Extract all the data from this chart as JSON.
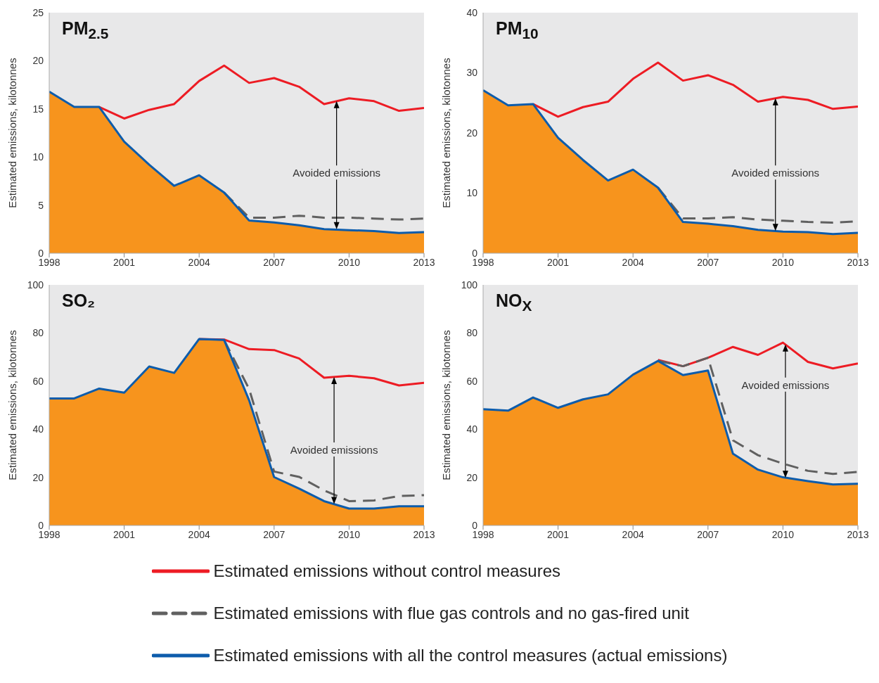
{
  "chart_data": [
    {
      "type": "line",
      "title": "PM$_{2.5}$",
      "ylabel": "Estimated emissions, kilotonnes",
      "x": [
        1998,
        1999,
        2000,
        2001,
        2002,
        2003,
        2004,
        2005,
        2006,
        2007,
        2008,
        2009,
        2010,
        2011,
        2012,
        2013
      ],
      "xlim": [
        1998,
        2013
      ],
      "xticks": [
        1998,
        2001,
        2004,
        2007,
        2010,
        2013
      ],
      "ylim": [
        0,
        25
      ],
      "yticks": [
        0,
        5,
        10,
        15,
        20,
        25
      ],
      "legend": "bottom",
      "annotations": [
        {
          "text": "Avoided emissions",
          "x": 2009.5,
          "y": 2.5
        }
      ],
      "series": [
        {
          "type": "area",
          "color": "#f7941d",
          "values": [
            16.8,
            15.2,
            15.2,
            11.6,
            9.2,
            7.0,
            8.1,
            6.3,
            3.4,
            3.2,
            2.9,
            2.5,
            2.4,
            2.3,
            2.1,
            2.2
          ]
        },
        {
          "name": "Estimated emissions without control measures",
          "color": "#ed1c24",
          "values": [
            null,
            null,
            15.2,
            14.0,
            14.9,
            15.5,
            17.9,
            19.5,
            17.7,
            18.2,
            17.3,
            15.5,
            16.1,
            15.8,
            14.8,
            15.1
          ]
        },
        {
          "name": "Estimated emissions with flue gas controls and no gas-fired unit",
          "color": "#606060",
          "line_style": "dashed",
          "values": [
            null,
            null,
            null,
            null,
            null,
            null,
            null,
            6.3,
            3.7,
            3.7,
            3.9,
            3.7,
            3.7,
            3.6,
            3.5,
            3.6
          ]
        },
        {
          "name": "Estimated emissions with all the control measures (actual emissions)",
          "color": "#0d5cab",
          "values": [
            16.8,
            15.2,
            15.2,
            11.6,
            9.2,
            7.0,
            8.1,
            6.3,
            3.4,
            3.2,
            2.9,
            2.5,
            2.4,
            2.3,
            2.1,
            2.2
          ]
        }
      ]
    },
    {
      "type": "line",
      "title": "PM$_{10}$",
      "ylabel": "Estimated emissions, kilotonnes",
      "x": [
        1998,
        1999,
        2000,
        2001,
        2002,
        2003,
        2004,
        2005,
        2006,
        2007,
        2008,
        2009,
        2010,
        2011,
        2012,
        2013
      ],
      "xlim": [
        1998,
        2013
      ],
      "xticks": [
        1998,
        2001,
        2004,
        2007,
        2010,
        2013
      ],
      "ylim": [
        0,
        40
      ],
      "yticks": [
        0,
        10,
        20,
        30,
        40
      ],
      "annotations": [
        {
          "text": "Avoided emissions",
          "x": 2009.7,
          "y": 3.7
        }
      ],
      "series": [
        {
          "type": "area",
          "color": "#f7941d",
          "values": [
            27.1,
            24.6,
            24.8,
            19.2,
            15.5,
            12.1,
            13.9,
            10.9,
            5.2,
            4.9,
            4.5,
            3.9,
            3.6,
            3.5,
            3.2,
            3.4
          ]
        },
        {
          "color": "#ed1c24",
          "values": [
            null,
            null,
            24.8,
            22.7,
            24.3,
            25.2,
            29.0,
            31.7,
            28.7,
            29.6,
            28.0,
            25.2,
            26.0,
            25.5,
            24.0,
            24.4
          ]
        },
        {
          "color": "#606060",
          "line_style": "dashed",
          "values": [
            null,
            null,
            null,
            null,
            null,
            null,
            null,
            10.9,
            5.8,
            5.8,
            6.0,
            5.6,
            5.4,
            5.2,
            5.1,
            5.3
          ]
        },
        {
          "color": "#0d5cab",
          "values": [
            27.1,
            24.6,
            24.8,
            19.2,
            15.5,
            12.1,
            13.9,
            10.9,
            5.2,
            4.9,
            4.5,
            3.9,
            3.6,
            3.5,
            3.2,
            3.4
          ]
        }
      ]
    },
    {
      "type": "line",
      "title": "SO₂",
      "ylabel": "Estimated emissions, kilotonnes",
      "x": [
        1998,
        1999,
        2000,
        2001,
        2002,
        2003,
        2004,
        2005,
        2006,
        2007,
        2008,
        2009,
        2010,
        2011,
        2012,
        2013
      ],
      "xlim": [
        1998,
        2013
      ],
      "xticks": [
        1998,
        2001,
        2004,
        2007,
        2010,
        2013
      ],
      "ylim": [
        0,
        100
      ],
      "yticks": [
        0,
        20,
        40,
        60,
        80,
        100
      ],
      "annotations": [
        {
          "text": "Avoided emissions",
          "x": 2009.4,
          "y": 8.9
        }
      ],
      "series": [
        {
          "type": "area",
          "color": "#f7941d",
          "values": [
            52.8,
            52.8,
            56.9,
            55.2,
            66.1,
            63.4,
            77.5,
            77.1,
            52,
            20.1,
            15.3,
            10.1,
            7.0,
            7.0,
            8.0,
            8.0
          ]
        },
        {
          "color": "#ed1c24",
          "values": [
            null,
            null,
            null,
            null,
            null,
            null,
            77.5,
            77.3,
            73.3,
            72.9,
            69.4,
            61.4,
            62.2,
            61.2,
            58.2,
            59.3
          ]
        },
        {
          "color": "#606060",
          "line_style": "dashed",
          "values": [
            null,
            null,
            null,
            null,
            null,
            null,
            null,
            77.1,
            56.7,
            22.4,
            20.2,
            14.6,
            10.1,
            10.4,
            12.2,
            12.6
          ]
        },
        {
          "color": "#0d5cab",
          "values": [
            52.8,
            52.8,
            56.9,
            55.2,
            66.1,
            63.4,
            77.5,
            77.1,
            52,
            20.1,
            15.3,
            10.1,
            7.0,
            7.0,
            8.0,
            8.0
          ]
        }
      ]
    },
    {
      "type": "line",
      "title": "NO$_{X}$",
      "ylabel": "Estimated emissions, kilotonnes",
      "x": [
        1998,
        1999,
        2000,
        2001,
        2002,
        2003,
        2004,
        2005,
        2006,
        2007,
        2008,
        2009,
        2010,
        2011,
        2012,
        2013
      ],
      "xlim": [
        1998,
        2013
      ],
      "xticks": [
        1998,
        2001,
        2004,
        2007,
        2010,
        2013
      ],
      "ylim": [
        0,
        100
      ],
      "yticks": [
        0,
        20,
        40,
        60,
        80,
        100
      ],
      "annotations": [
        {
          "text": "Avoided emissions",
          "x": 2010.1,
          "y": 19.8
        }
      ],
      "series": [
        {
          "type": "area",
          "color": "#f7941d",
          "values": [
            48.3,
            47.7,
            53.2,
            48.9,
            52.4,
            54.5,
            62.7,
            68.4,
            62.5,
            64.4,
            29.8,
            23.2,
            20.0,
            18.4,
            17.0,
            17.3
          ]
        },
        {
          "color": "#ed1c24",
          "values": [
            null,
            null,
            null,
            null,
            null,
            null,
            null,
            68.8,
            66.2,
            69.7,
            74.2,
            70.9,
            76.0,
            68.0,
            65.3,
            67.3
          ]
        },
        {
          "color": "#606060",
          "line_style": "dashed",
          "values": [
            null,
            null,
            null,
            null,
            null,
            null,
            null,
            68.4,
            66.2,
            69.7,
            35.4,
            29.2,
            25.7,
            22.7,
            21.4,
            22.3
          ]
        },
        {
          "color": "#0d5cab",
          "values": [
            48.3,
            47.7,
            53.2,
            48.9,
            52.4,
            54.5,
            62.7,
            68.4,
            62.5,
            64.4,
            29.8,
            23.2,
            20.0,
            18.4,
            17.0,
            17.3
          ]
        }
      ]
    }
  ]
}
